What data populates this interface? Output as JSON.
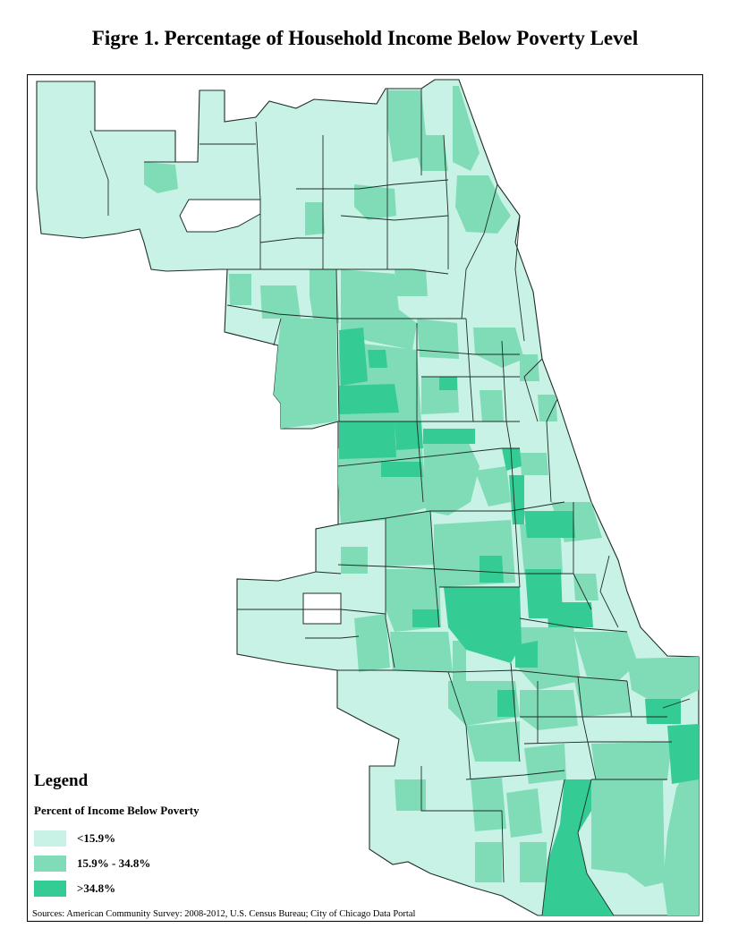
{
  "title": "Figre 1. Percentage of Household Income Below Poverty Level",
  "legend": {
    "title": "Legend",
    "subtitle": "Percent of Income Below Poverty",
    "items": [
      {
        "label": "<15.9%",
        "color": "#c9f2e6"
      },
      {
        "label": "15.9% - 34.8%",
        "color": "#7fdcb7"
      },
      {
        "label": ">34.8%",
        "color": "#35cb94"
      }
    ]
  },
  "sources": "Sources: American Community Survey: 2008-2012, U.S. Census Bureau; City of Chicago Data Portal"
}
